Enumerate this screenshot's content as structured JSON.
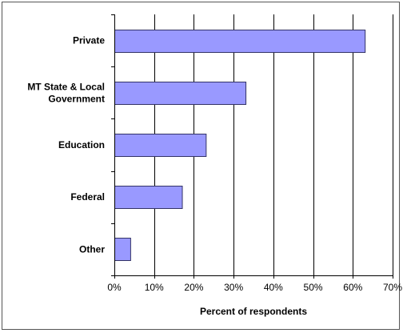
{
  "chart_data": {
    "type": "bar",
    "orientation": "horizontal",
    "categories": [
      [
        "Private"
      ],
      [
        "MT State & Local",
        "Government"
      ],
      [
        "Education"
      ],
      [
        "Federal"
      ],
      [
        "Other"
      ]
    ],
    "values": [
      63,
      33,
      23,
      17,
      4
    ],
    "xlabel": "Percent of respondents",
    "xlim": [
      0,
      70
    ],
    "xticks": [
      "0%",
      "10%",
      "20%",
      "30%",
      "40%",
      "50%",
      "60%",
      "70%"
    ],
    "grid": "vertical",
    "bar_color": "#9999ff",
    "bar_edge_color": "#333366"
  }
}
